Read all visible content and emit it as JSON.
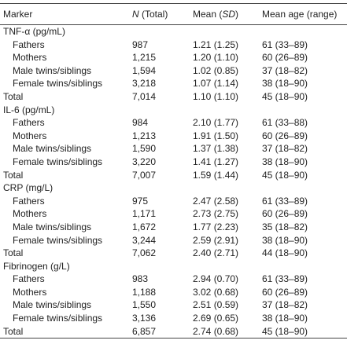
{
  "table": {
    "header": [
      "Marker",
      [
        "N",
        " (Total)"
      ],
      [
        "Mean (",
        "SD",
        ")"
      ],
      "Mean age (range)"
    ],
    "groups": [
      {
        "title": "TNF-α (pg/mL)",
        "rows": [
          [
            "Fathers",
            "987",
            "1.21 (1.25)",
            "61 (33–89)"
          ],
          [
            "Mothers",
            "1,215",
            "1.20 (1.10)",
            "60 (26–89)"
          ],
          [
            "Male twins/siblings",
            "1,594",
            "1.02 (0.85)",
            "37 (18–82)"
          ],
          [
            "Female twins/siblings",
            "3,218",
            "1.07 (1.14)",
            "38 (18–90)"
          ]
        ],
        "total": [
          "Total",
          "7,014",
          "1.10 (1.10)",
          "45 (18–90)"
        ]
      },
      {
        "title": "IL-6 (pg/mL)",
        "rows": [
          [
            "Fathers",
            "984",
            "2.10 (1.77)",
            "61 (33–88)"
          ],
          [
            "Mothers",
            "1,213",
            "1.91 (1.50)",
            "60 (26–89)"
          ],
          [
            "Male twins/siblings",
            "1,590",
            "1.37 (1.38)",
            "37 (18–82)"
          ],
          [
            "Female twins/siblings",
            "3,220",
            "1.41 (1.27)",
            "38 (18–90)"
          ]
        ],
        "total": [
          "Total",
          "7,007",
          "1.59 (1.44)",
          "45 (18–90)"
        ]
      },
      {
        "title": "CRP (mg/L)",
        "rows": [
          [
            "Fathers",
            "975",
            "2.47 (2.58)",
            "61 (33–89)"
          ],
          [
            "Mothers",
            "1,171",
            "2.73 (2.75)",
            "60 (26–89)"
          ],
          [
            "Male twins/siblings",
            "1,672",
            "1.77 (2.23)",
            "35 (18–82)"
          ],
          [
            "Female twins/siblings",
            "3,244",
            "2.59 (2.91)",
            "38 (18–90)"
          ]
        ],
        "total": [
          "Total",
          "7,062",
          "2.40 (2.71)",
          "44 (18–90)"
        ]
      },
      {
        "title": "Fibrinogen (g/L)",
        "rows": [
          [
            "Fathers",
            "983",
            "2.94 (0.70)",
            "61 (33–89)"
          ],
          [
            "Mothers",
            "1,188",
            "3.02 (0.68)",
            "60 (26–89)"
          ],
          [
            "Male twins/siblings",
            "1,550",
            "2.51 (0.59)",
            "37 (18–82)"
          ],
          [
            "Female twins/siblings",
            "3,136",
            "2.69 (0.65)",
            "38 (18–90)"
          ]
        ],
        "total": [
          "Total",
          "6,857",
          "2.74 (0.68)",
          "45 (18–90)"
        ]
      }
    ]
  }
}
